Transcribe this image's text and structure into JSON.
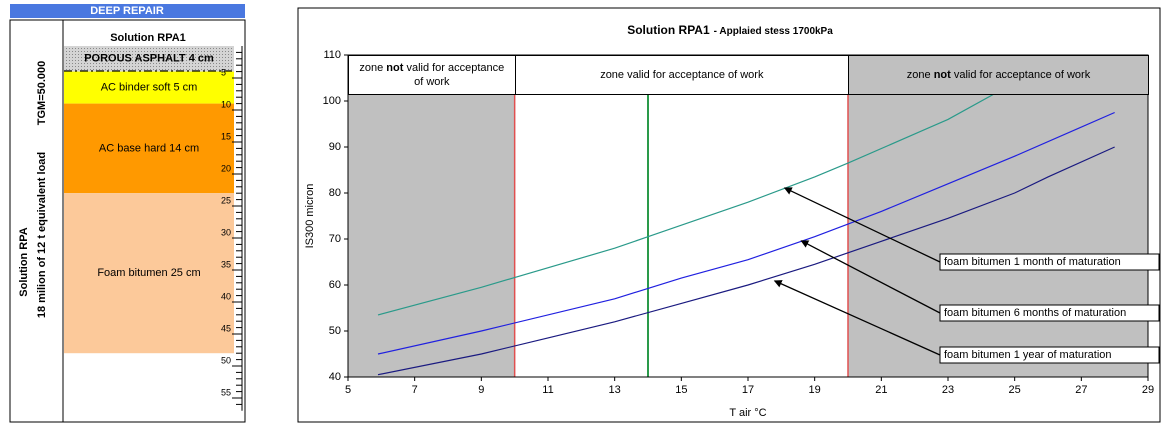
{
  "panel": {
    "header": "DEEP REPAIR",
    "solution_title": "Solution RPA",
    "load_text": "18 milion of 12 t equivalent load",
    "traffic_text": "TGM=50.000",
    "structure_title": "Solution RPA1",
    "depth_lim": [
      0,
      57
    ],
    "depth_ticks": [
      5,
      10,
      15,
      20,
      25,
      30,
      35,
      40,
      45,
      50,
      55
    ],
    "layers": [
      {
        "label": "POROUS ASPHALT 4 cm",
        "thickness": 4,
        "color": "#d4d4d4",
        "bold": true
      },
      {
        "label": "AC binder soft 5 cm",
        "thickness": 5,
        "color": "#ffff00",
        "bold": false
      },
      {
        "label": "AC base hard 14 cm",
        "thickness": 14,
        "color": "#ff9900",
        "bold": false
      },
      {
        "label": "Foam bitumen 25 cm",
        "thickness": 25,
        "color": "#fcc99a",
        "bold": false
      }
    ]
  },
  "chart_data": {
    "type": "line",
    "title": "Solution RPA1",
    "subtitle": "- Applaied stess 1700kPa",
    "x_label": "T air °C",
    "y_label": "IS300 micron",
    "xlim": [
      5,
      29
    ],
    "ylim": [
      40,
      110
    ],
    "xticks": [
      5,
      7,
      9,
      11,
      13,
      15,
      17,
      19,
      21,
      23,
      25,
      27,
      29
    ],
    "yticks": [
      40,
      50,
      60,
      70,
      80,
      90,
      100,
      110
    ],
    "zone_bounds": [
      10,
      20
    ],
    "zone_bound_color": "#e05050",
    "reference_line": {
      "x": 14,
      "color": "#2a9a4a"
    },
    "zones": [
      {
        "before": "zone ",
        "bold": "not",
        "after": " valid for acceptance of work",
        "shaded": true
      },
      {
        "before": "zone valid for acceptance of work",
        "shaded": false
      },
      {
        "before": "zone ",
        "bold": "not",
        "after": " valid for acceptance of work",
        "shaded": true
      }
    ],
    "shade_color": "#c0c0c0",
    "series": [
      {
        "color": "#2a9a8a",
        "x": [
          5.9,
          9,
          13,
          14,
          17,
          19,
          20,
          23,
          25,
          27
        ],
        "values": [
          53.5,
          59.5,
          68,
          70.5,
          78,
          83.5,
          86.5,
          96,
          104,
          111.5
        ]
      },
      {
        "color": "#2020e0",
        "x": [
          5.9,
          9,
          13,
          15,
          17,
          19,
          21,
          23,
          25,
          28
        ],
        "values": [
          45,
          50,
          57,
          61.5,
          65.5,
          70.5,
          76,
          82,
          88,
          97.5
        ]
      },
      {
        "color": "#1a1a80",
        "x": [
          5.9,
          9,
          11,
          13,
          15,
          17,
          19,
          21,
          23,
          25,
          26,
          28
        ],
        "values": [
          40.5,
          45,
          48.5,
          52,
          56,
          60,
          64.5,
          69.5,
          74.5,
          80,
          83.5,
          90
        ]
      }
    ],
    "annotations": [
      {
        "text": "foam bitumen 1 month of maturation",
        "x": 18.1,
        "y": 81.1
      },
      {
        "text": "foam bitumen 6 months of maturation",
        "x": 18.6,
        "y": 69.6
      },
      {
        "text": "foam bitumen 1 year of maturation",
        "x": 17.8,
        "y": 60.9
      }
    ]
  }
}
